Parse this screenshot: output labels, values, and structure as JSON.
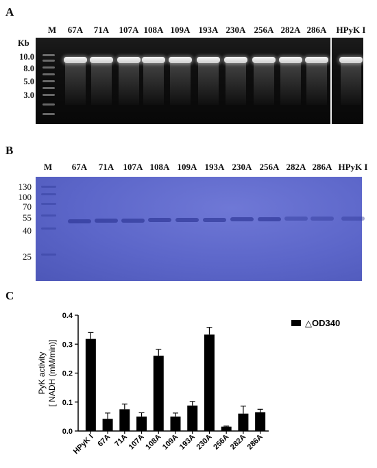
{
  "panel_a": {
    "letter": "A",
    "lanes": [
      "M",
      "67A",
      "71A",
      "107A",
      "108A",
      "109A",
      "193A",
      "230A",
      "256A",
      "282A",
      "286A",
      "HPyK I"
    ],
    "marker_unit": "Kb",
    "markers": [
      "10.0",
      "8.0",
      "5.0",
      "3.0"
    ]
  },
  "panel_b": {
    "letter": "B",
    "lanes": [
      "M",
      "67A",
      "71A",
      "107A",
      "108A",
      "109A",
      "193A",
      "230A",
      "256A",
      "282A",
      "286A",
      "HPyK I"
    ],
    "markers": [
      "130",
      "100",
      "70",
      "55",
      "40",
      "25"
    ]
  },
  "panel_c": {
    "letter": "C",
    "legend_label": "△OD340"
  },
  "chart_data": {
    "type": "bar",
    "categories": [
      "HPyK I",
      "67A",
      "71A",
      "107A",
      "108A",
      "109A",
      "193A",
      "230A",
      "256A",
      "282A",
      "286A"
    ],
    "series": [
      {
        "name": "△OD340",
        "values": [
          0.318,
          0.042,
          0.075,
          0.05,
          0.26,
          0.05,
          0.088,
          0.333,
          0.015,
          0.06,
          0.065
        ],
        "errors": [
          0.022,
          0.02,
          0.018,
          0.013,
          0.022,
          0.012,
          0.014,
          0.025,
          0.002,
          0.026,
          0.01
        ]
      }
    ],
    "ylabel": "PyK activity\n[ NADH (mM/min)]",
    "ylabel_lines": [
      "PyK activity",
      "[ NADH (mM/min)]"
    ],
    "ylim": [
      0,
      0.4
    ],
    "yticks": [
      "0.0",
      "0.1",
      "0.2",
      "0.3",
      "0.4"
    ],
    "legend_position": "top-right",
    "bar_color": "#000000",
    "grid": false
  }
}
